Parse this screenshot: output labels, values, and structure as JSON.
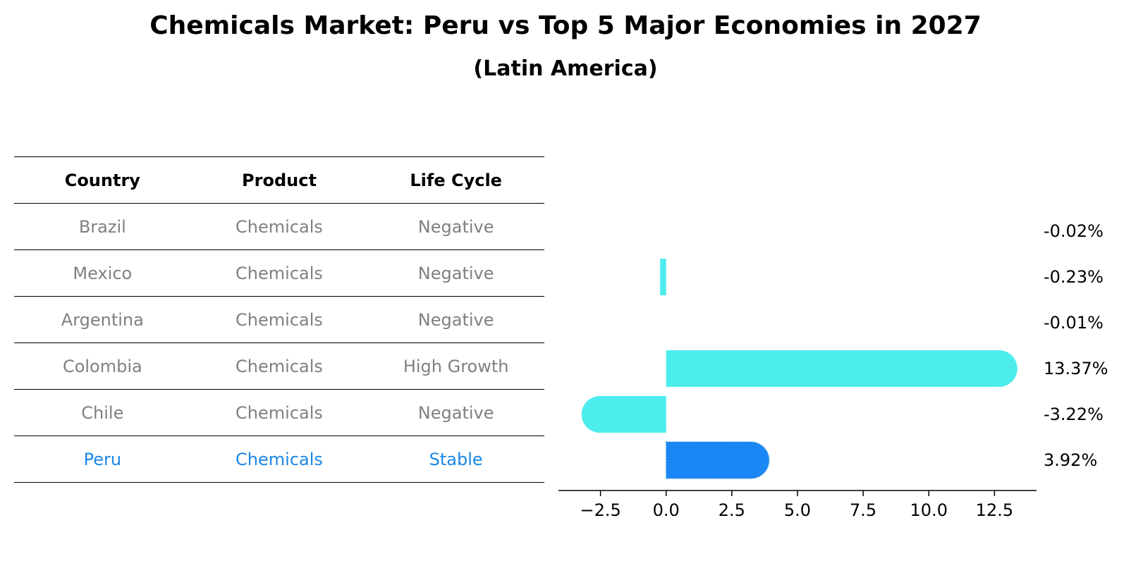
{
  "header": {
    "title": "Chemicals Market: Peru vs Top 5 Major Economies in 2027",
    "subtitle": "(Latin America)"
  },
  "table": {
    "columns": [
      "Country",
      "Product",
      "Life Cycle"
    ],
    "rows": [
      {
        "country": "Brazil",
        "product": "Chemicals",
        "life_cycle": "Negative"
      },
      {
        "country": "Mexico",
        "product": "Chemicals",
        "life_cycle": "Negative"
      },
      {
        "country": "Argentina",
        "product": "Chemicals",
        "life_cycle": "Negative"
      },
      {
        "country": "Colombia",
        "product": "Chemicals",
        "life_cycle": "High Growth"
      },
      {
        "country": "Chile",
        "product": "Chemicals",
        "life_cycle": "Negative"
      },
      {
        "country": "Peru",
        "product": "Chemicals",
        "life_cycle": "Stable"
      }
    ]
  },
  "colors": {
    "bar": "#4deced",
    "highlight": "#1a87f5",
    "highlight_text": "#1a87e8",
    "muted_text": "#808080"
  },
  "chart_data": {
    "type": "bar",
    "orientation": "horizontal",
    "title": "Chemicals Market: Peru vs Top 5 Major Economies in 2027",
    "subtitle": "(Latin America)",
    "categories": [
      "Brazil",
      "Mexico",
      "Argentina",
      "Colombia",
      "Chile",
      "Peru"
    ],
    "values": [
      -0.02,
      -0.23,
      -0.01,
      13.37,
      -3.22,
      3.92
    ],
    "value_labels": [
      "-0.02%",
      "-0.23%",
      "-0.01%",
      "13.37%",
      "-3.22%",
      "3.92%"
    ],
    "highlight": "Peru",
    "xlim": [
      -4.1,
      14.1
    ],
    "xticks": [
      -2.5,
      0.0,
      2.5,
      5.0,
      7.5,
      10.0,
      12.5
    ],
    "xtick_labels": [
      "−2.5",
      "0.0",
      "2.5",
      "5.0",
      "7.5",
      "10.0",
      "12.5"
    ],
    "xlabel": "",
    "ylabel": ""
  }
}
